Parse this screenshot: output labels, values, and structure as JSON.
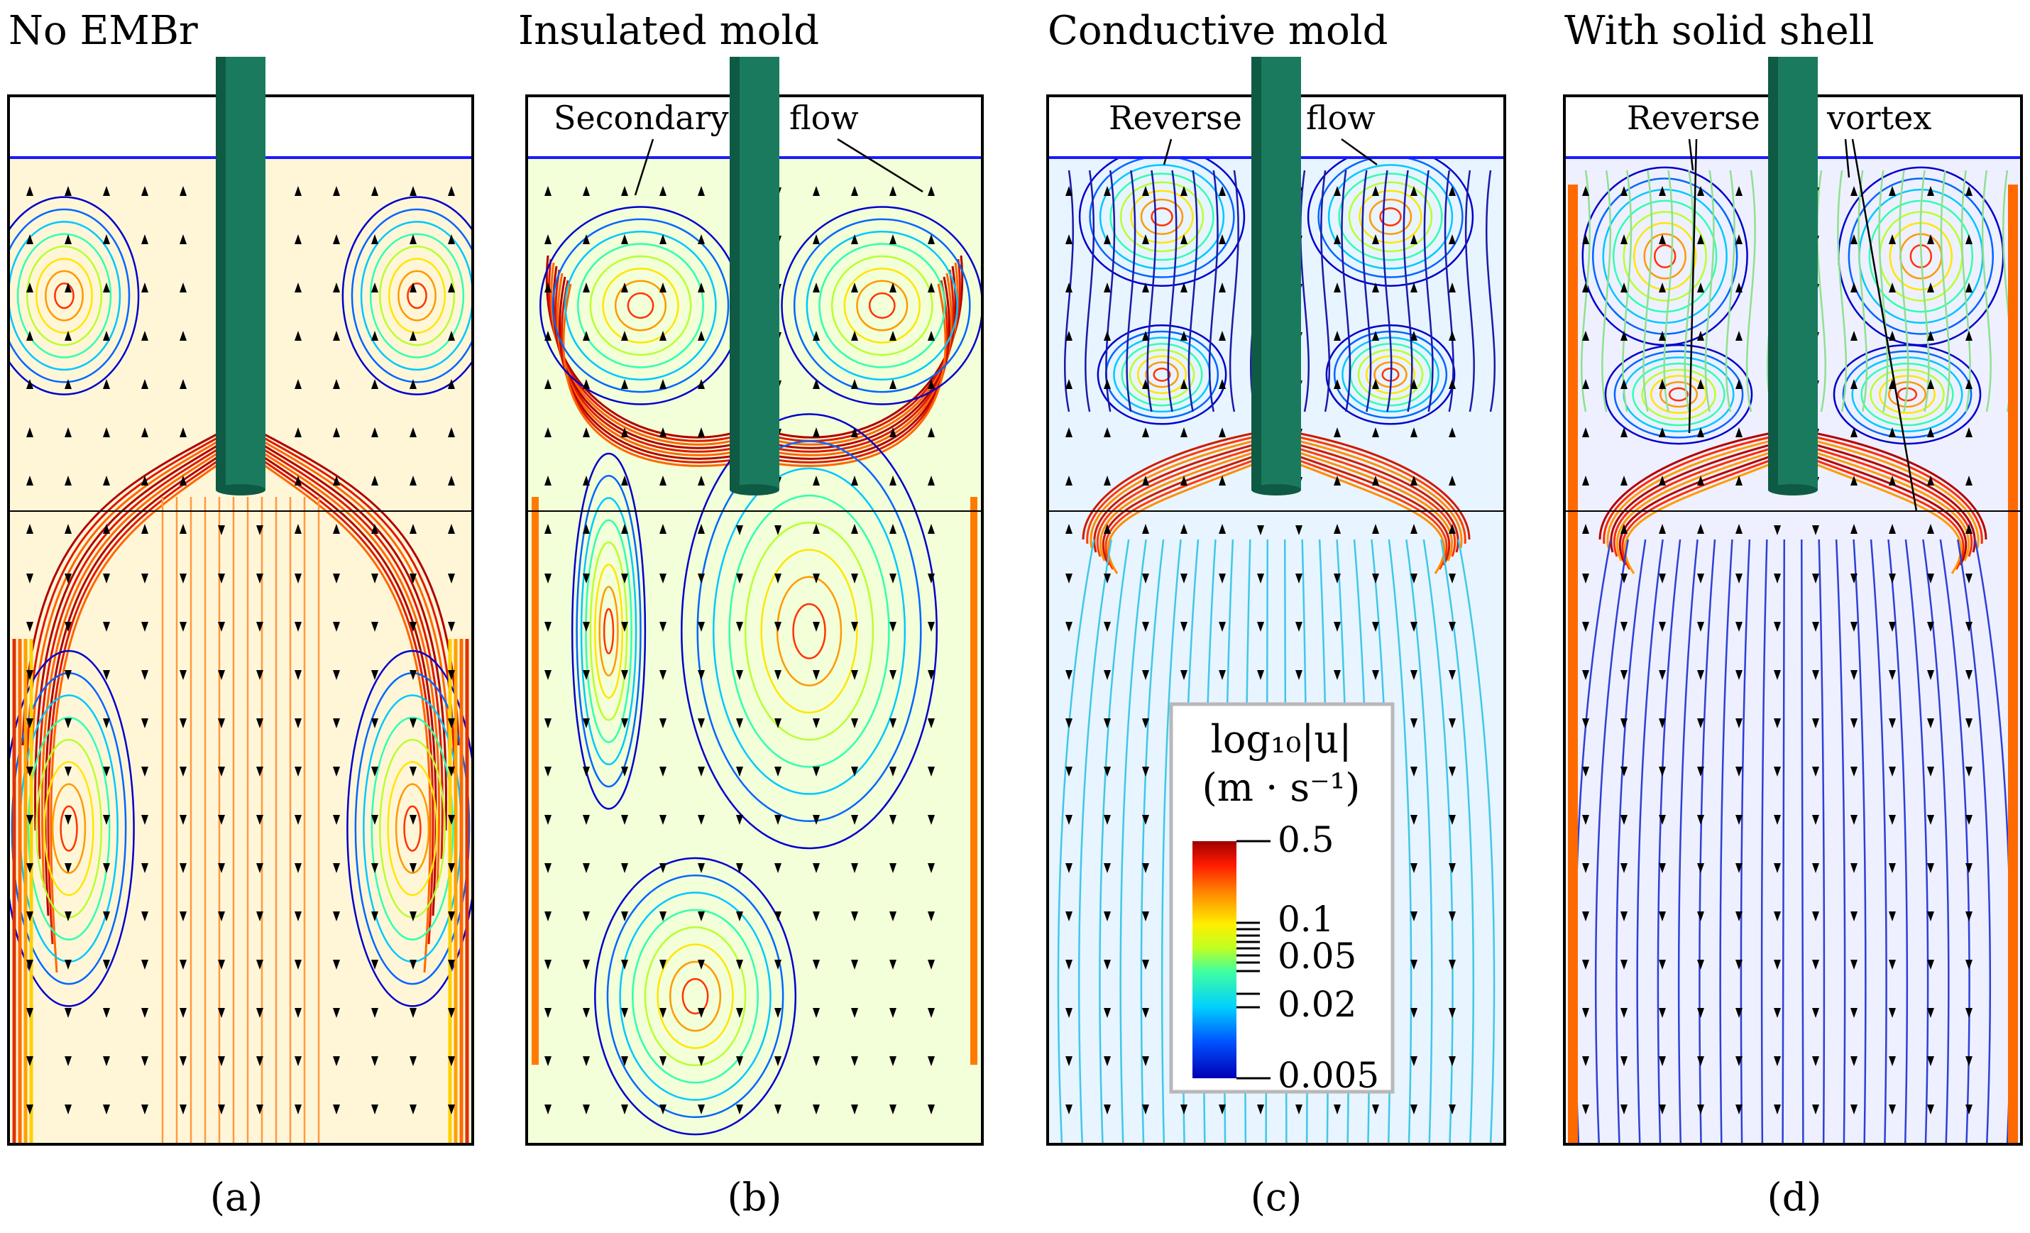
{
  "figure": {
    "panels": [
      {
        "id": "a",
        "title": "No EMBr",
        "caption": "(a)",
        "annotations": []
      },
      {
        "id": "b",
        "title": "Insulated mold",
        "caption": "(b)",
        "annotations": [
          "Secondary",
          "flow"
        ]
      },
      {
        "id": "c",
        "title": "Conductive mold",
        "caption": "(c)",
        "annotations": [
          "Reverse",
          "flow"
        ]
      },
      {
        "id": "d",
        "title": "With solid shell",
        "caption": "(d)",
        "annotations": [
          "Reverse",
          "vortex"
        ]
      }
    ],
    "colorbar": {
      "title_line1": "log₁₀|u|",
      "title_line2": "(m · s⁻¹)",
      "ticks": [
        "0.5",
        "0.1",
        "0.05",
        "0.02",
        "0.005"
      ],
      "colors": [
        "#b30000",
        "#ff2a00",
        "#ff9900",
        "#ffee00",
        "#7fff3f",
        "#00e5e5",
        "#0080ff",
        "#0000cc"
      ]
    },
    "colors": {
      "nozzle": "#1a7a5e",
      "nozzle_dark": "#0f5a44",
      "frame": "#000000",
      "meniscus": "#1a1aff"
    }
  }
}
